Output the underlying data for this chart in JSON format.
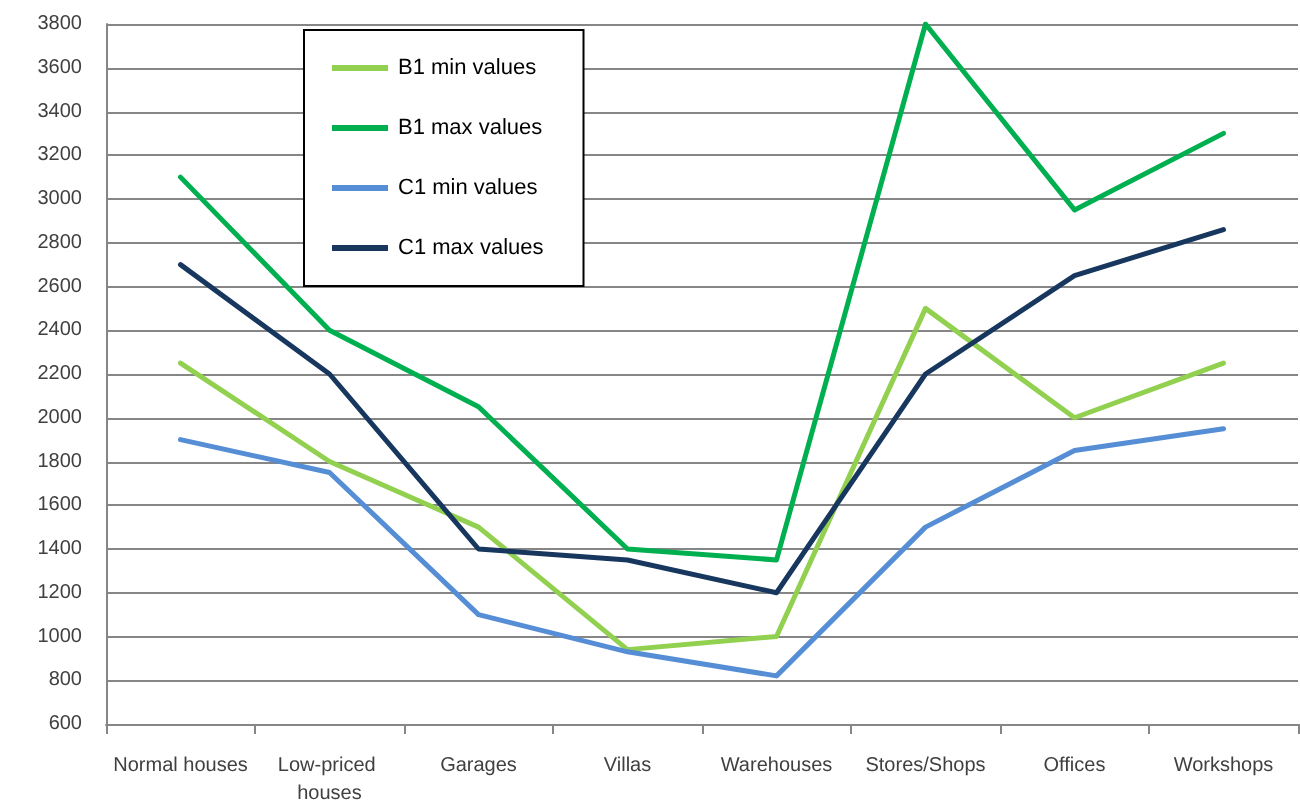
{
  "chart_data": {
    "type": "line",
    "categories": [
      "Normal houses",
      "Low-priced houses",
      "Garages",
      "Villas",
      "Warehouses",
      "Stores/Shops",
      "Offices",
      "Workshops"
    ],
    "series": [
      {
        "name": "B1 min values",
        "color": "#92d050",
        "values": [
          2250,
          1800,
          1500,
          940,
          1000,
          2500,
          2000,
          2250
        ]
      },
      {
        "name": "B1 max values",
        "color": "#00b050",
        "values": [
          3100,
          2400,
          2050,
          1400,
          1350,
          3800,
          2950,
          3300
        ]
      },
      {
        "name": "C1 min values",
        "color": "#558ed5",
        "values": [
          1900,
          1750,
          1100,
          930,
          820,
          1500,
          1850,
          1950
        ]
      },
      {
        "name": "C1 max values",
        "color": "#17375e",
        "values": [
          2700,
          2200,
          1400,
          1350,
          1200,
          2200,
          2650,
          2860
        ]
      }
    ],
    "ylim": [
      600,
      3800
    ],
    "yticks": [
      600,
      800,
      1000,
      1200,
      1400,
      1600,
      1800,
      2000,
      2200,
      2400,
      2600,
      2800,
      3000,
      3200,
      3400,
      3600,
      3800
    ],
    "grid": "y",
    "legend": "top left",
    "marker": "none",
    "line_style": "solid"
  }
}
